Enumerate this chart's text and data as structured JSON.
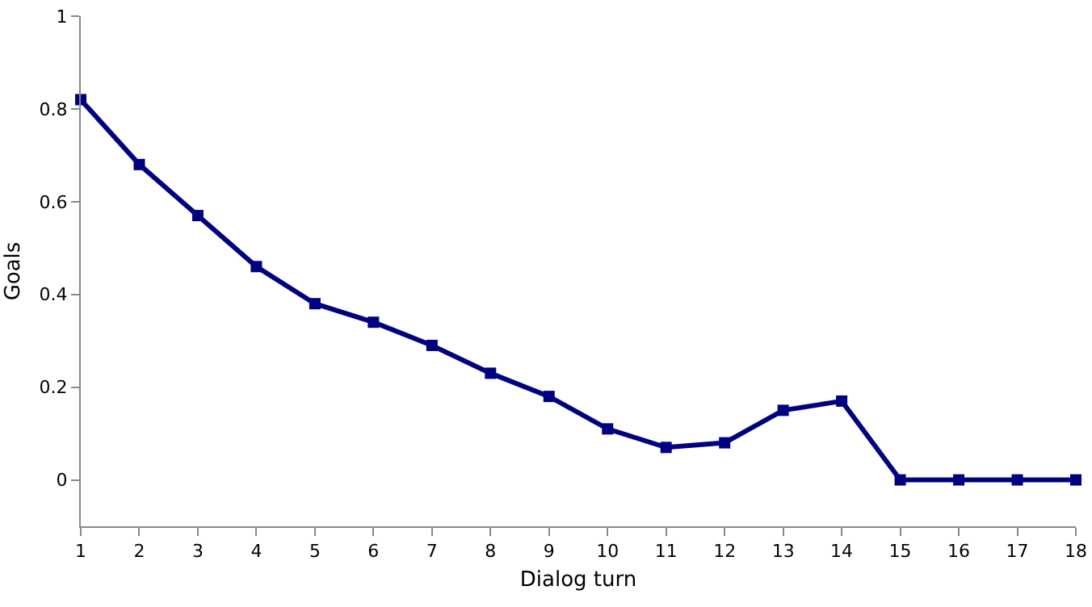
{
  "chart_data": {
    "type": "line",
    "xlabel": "Dialog turn",
    "ylabel": "Goals",
    "x": [
      1,
      2,
      3,
      4,
      5,
      6,
      7,
      8,
      9,
      10,
      11,
      12,
      13,
      14,
      15,
      16,
      17,
      18
    ],
    "series": [
      {
        "color": "#000080",
        "values": [
          0.82,
          0.68,
          0.57,
          0.46,
          0.38,
          0.34,
          0.29,
          0.23,
          0.18,
          0.11,
          0.07,
          0.08,
          0.15,
          0.17,
          0,
          0,
          0,
          0
        ]
      }
    ],
    "xlim": [
      1,
      18
    ],
    "xticks": [
      1,
      2,
      3,
      4,
      5,
      6,
      7,
      8,
      9,
      10,
      11,
      12,
      13,
      14,
      15,
      16,
      17,
      18
    ],
    "ylim": [
      -0.1,
      1
    ],
    "yticks": [
      0,
      0.2,
      0.4,
      0.6,
      0.8,
      1
    ],
    "grid": false,
    "legend": false,
    "marker": "square",
    "line_style": "solid"
  }
}
